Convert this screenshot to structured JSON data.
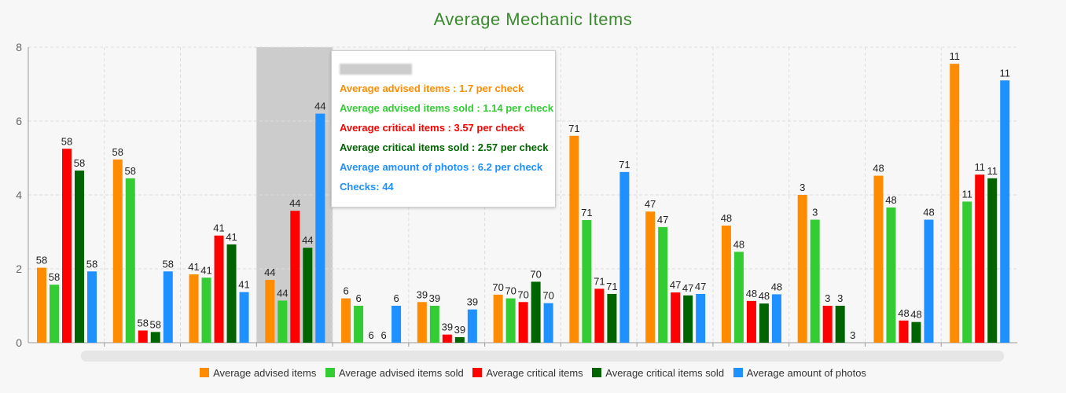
{
  "chart_data": {
    "type": "bar",
    "title": "Average Mechanic Items",
    "ylim": [
      0,
      8
    ],
    "yticks": [
      0,
      2,
      4,
      6,
      8
    ],
    "grid": true,
    "legend_position": "bottom",
    "categories": [
      "",
      "",
      "",
      "",
      "",
      "",
      "",
      "",
      "",
      "",
      "",
      "",
      ""
    ],
    "checks": [
      58,
      58,
      41,
      44,
      6,
      39,
      70,
      71,
      47,
      48,
      3,
      48,
      11
    ],
    "series": [
      {
        "name": "Average advised items",
        "color": "#ff8c00",
        "values": [
          2.03,
          4.96,
          1.85,
          1.7,
          1.2,
          1.1,
          1.3,
          5.6,
          3.55,
          3.17,
          4.0,
          4.52,
          7.55
        ]
      },
      {
        "name": "Average advised items sold",
        "color": "#33cc33",
        "values": [
          1.57,
          4.45,
          1.76,
          1.14,
          1.0,
          1.0,
          1.2,
          3.32,
          3.13,
          2.46,
          3.33,
          3.66,
          3.82
        ]
      },
      {
        "name": "Average critical items",
        "color": "#ff0000",
        "values": [
          5.25,
          0.33,
          2.9,
          3.57,
          0,
          0.22,
          1.1,
          1.46,
          1.36,
          1.13,
          1.0,
          0.6,
          4.55
        ]
      },
      {
        "name": "Average critical items sold",
        "color": "#006400",
        "values": [
          4.66,
          0.29,
          2.66,
          2.57,
          0,
          0.15,
          1.65,
          1.32,
          1.28,
          1.06,
          1.0,
          0.56,
          4.45
        ]
      },
      {
        "name": "Average amount of photos",
        "color": "#1e90ff",
        "values": [
          1.93,
          1.93,
          1.37,
          6.2,
          1.0,
          0.9,
          1.07,
          4.62,
          1.32,
          1.31,
          0,
          3.33,
          7.1
        ]
      }
    ],
    "highlighted_category_index": 3
  },
  "tooltip": {
    "lines": [
      "Average advised items : 1.7 per check",
      "Average advised items sold : 1.14 per check",
      "Average critical items : 3.57 per check",
      "Average critical items sold : 2.57 per check",
      "Average amount of photos : 6.2 per check",
      "Checks: 44"
    ]
  }
}
